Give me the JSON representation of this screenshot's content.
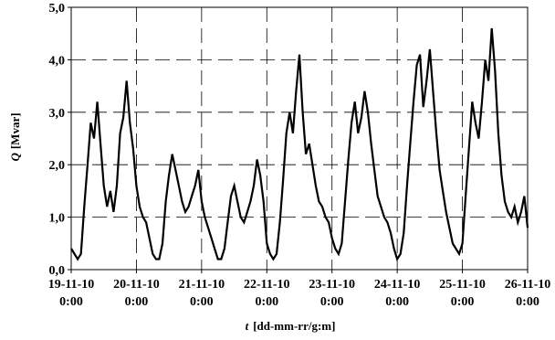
{
  "chart_data": {
    "type": "line",
    "title": "",
    "xlabel_symbol": "t",
    "xlabel_unit": "[dd-mm-rr/g:m]",
    "ylabel_symbol": "Q",
    "ylabel_unit": "[Mvar]",
    "ylim": [
      0,
      5
    ],
    "xlim": [
      "19-11-10 0:00",
      "26-11-10 0:00"
    ],
    "y_ticks": [
      "0,0",
      "1,0",
      "2,0",
      "3,0",
      "4,0",
      "5,0"
    ],
    "x_ticks": [
      {
        "date": "19-11-10",
        "time": "0:00"
      },
      {
        "date": "20-11-10",
        "time": "0:00"
      },
      {
        "date": "21-11-10",
        "time": "0:00"
      },
      {
        "date": "22-11-10",
        "time": "0:00"
      },
      {
        "date": "23-11-10",
        "time": "0:00"
      },
      {
        "date": "24-11-10",
        "time": "0:00"
      },
      {
        "date": "25-11-10",
        "time": "0:00"
      },
      {
        "date": "26-11-10",
        "time": "0:00"
      }
    ],
    "grid": "dashed",
    "series": [
      {
        "color": "#000000",
        "x": [
          0.0,
          0.05,
          0.1,
          0.15,
          0.2,
          0.25,
          0.3,
          0.35,
          0.4,
          0.45,
          0.5,
          0.55,
          0.6,
          0.65,
          0.7,
          0.75,
          0.8,
          0.85,
          0.9,
          0.95,
          1.0,
          1.05,
          1.1,
          1.15,
          1.2,
          1.25,
          1.3,
          1.35,
          1.4,
          1.45,
          1.5,
          1.55,
          1.6,
          1.65,
          1.7,
          1.75,
          1.8,
          1.85,
          1.9,
          1.95,
          2.0,
          2.05,
          2.1,
          2.15,
          2.2,
          2.25,
          2.3,
          2.35,
          2.4,
          2.45,
          2.5,
          2.55,
          2.6,
          2.65,
          2.7,
          2.75,
          2.8,
          2.85,
          2.9,
          2.95,
          3.0,
          3.05,
          3.1,
          3.15,
          3.2,
          3.25,
          3.3,
          3.35,
          3.4,
          3.45,
          3.5,
          3.55,
          3.6,
          3.65,
          3.7,
          3.75,
          3.8,
          3.85,
          3.9,
          3.95,
          4.0,
          4.05,
          4.1,
          4.15,
          4.2,
          4.25,
          4.3,
          4.35,
          4.4,
          4.45,
          4.5,
          4.55,
          4.6,
          4.65,
          4.7,
          4.75,
          4.8,
          4.85,
          4.9,
          4.95,
          5.0,
          5.05,
          5.1,
          5.15,
          5.2,
          5.25,
          5.3,
          5.35,
          5.4,
          5.45,
          5.5,
          5.55,
          5.6,
          5.65,
          5.7,
          5.75,
          5.8,
          5.85,
          5.9,
          5.95,
          6.0,
          6.05,
          6.1,
          6.15,
          6.2,
          6.25,
          6.3,
          6.35,
          6.4,
          6.45,
          6.5,
          6.55,
          6.6,
          6.65,
          6.7,
          6.75,
          6.8,
          6.85,
          6.9,
          6.95,
          7.0
        ],
        "y": [
          0.4,
          0.3,
          0.2,
          0.3,
          1.2,
          2.0,
          2.8,
          2.5,
          3.2,
          2.4,
          1.6,
          1.2,
          1.5,
          1.1,
          1.6,
          2.6,
          2.9,
          3.6,
          2.8,
          2.3,
          1.6,
          1.2,
          1.0,
          0.9,
          0.6,
          0.3,
          0.2,
          0.2,
          0.5,
          1.3,
          1.8,
          2.2,
          1.9,
          1.6,
          1.3,
          1.1,
          1.2,
          1.4,
          1.6,
          1.9,
          1.3,
          1.0,
          0.8,
          0.6,
          0.4,
          0.2,
          0.2,
          0.4,
          0.9,
          1.4,
          1.6,
          1.3,
          1.0,
          0.9,
          1.1,
          1.3,
          1.6,
          2.1,
          1.8,
          1.3,
          0.5,
          0.3,
          0.2,
          0.3,
          0.9,
          1.7,
          2.6,
          3.0,
          2.6,
          3.4,
          4.1,
          3.0,
          2.2,
          2.4,
          2.0,
          1.6,
          1.3,
          1.2,
          1.0,
          0.9,
          0.6,
          0.4,
          0.3,
          0.5,
          1.3,
          2.1,
          2.8,
          3.2,
          2.6,
          2.9,
          3.4,
          3.0,
          2.4,
          1.9,
          1.4,
          1.2,
          1.0,
          0.9,
          0.7,
          0.4,
          0.2,
          0.3,
          0.7,
          1.6,
          2.4,
          3.2,
          3.9,
          4.1,
          3.1,
          3.6,
          4.2,
          3.4,
          2.6,
          1.9,
          1.5,
          1.1,
          0.8,
          0.5,
          0.4,
          0.3,
          0.5,
          1.4,
          2.3,
          3.2,
          2.8,
          2.5,
          3.2,
          4.0,
          3.6,
          4.6,
          3.8,
          2.6,
          1.8,
          1.3,
          1.1,
          1.0,
          1.2,
          0.9,
          1.1,
          1.4,
          0.8
        ]
      }
    ]
  }
}
